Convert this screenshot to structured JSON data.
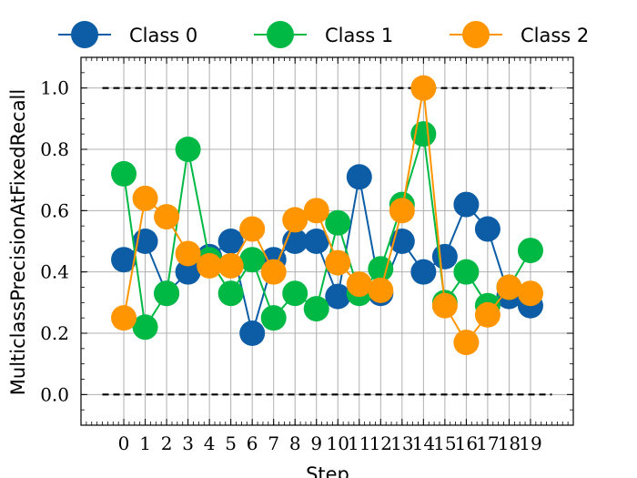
{
  "chart_data": {
    "type": "line",
    "xlabel": "Step",
    "ylabel": "MulticlassPrecisionAtFixedRecall",
    "x": [
      0,
      1,
      2,
      3,
      4,
      5,
      6,
      7,
      8,
      9,
      10,
      11,
      12,
      13,
      14,
      15,
      16,
      17,
      18,
      19
    ],
    "xlim": [
      -2,
      21
    ],
    "ylim": [
      -0.1,
      1.1
    ],
    "yticks": [
      0.0,
      0.2,
      0.4,
      0.6,
      0.8,
      1.0
    ],
    "ytick_labels": [
      "0.0",
      "0.2",
      "0.4",
      "0.6",
      "0.8",
      "1.0"
    ],
    "xtick_labels": [
      "0",
      "1",
      "2",
      "3",
      "4",
      "5",
      "6",
      "7",
      "8",
      "9",
      "10",
      "11",
      "12",
      "13",
      "14",
      "15",
      "16",
      "17",
      "18",
      "19"
    ],
    "grid": true,
    "legend_position": "top, above plot",
    "reference_lines": [
      0.0,
      1.0
    ],
    "series": [
      {
        "name": "Class 0",
        "color": "#0C5DA5",
        "values": [
          0.44,
          0.5,
          0.33,
          0.4,
          0.45,
          0.5,
          0.2,
          0.44,
          0.5,
          0.5,
          0.32,
          0.71,
          0.33,
          0.5,
          0.4,
          0.45,
          0.62,
          0.54,
          0.32,
          0.29
        ]
      },
      {
        "name": "Class 1",
        "color": "#00B945",
        "values": [
          0.72,
          0.22,
          0.33,
          0.8,
          0.44,
          0.33,
          0.44,
          0.25,
          0.33,
          0.28,
          0.56,
          0.33,
          0.41,
          0.62,
          0.85,
          0.3,
          0.4,
          0.29,
          0.35,
          0.47
        ]
      },
      {
        "name": "Class 2",
        "color": "#FF9500",
        "values": [
          0.25,
          0.64,
          0.58,
          0.46,
          0.42,
          0.42,
          0.54,
          0.4,
          0.57,
          0.6,
          0.43,
          0.36,
          0.34,
          0.6,
          1.0,
          0.29,
          0.17,
          0.26,
          0.35,
          0.33
        ]
      }
    ]
  }
}
